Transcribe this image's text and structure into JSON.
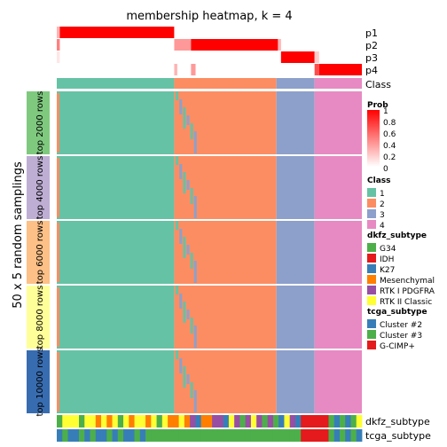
{
  "chart_data": {
    "type": "heatmap",
    "title": "membership heatmap, k = 4",
    "ylabel": "50 x 5 random samplings",
    "membership_rows": [
      {
        "label": "p1",
        "segments": [
          {
            "from": 0.0,
            "to": 0.01,
            "prob": 0.3
          },
          {
            "from": 0.01,
            "to": 0.385,
            "prob": 1.0
          },
          {
            "from": 0.385,
            "to": 1.0,
            "prob": 0.0
          }
        ]
      },
      {
        "label": "p2",
        "segments": [
          {
            "from": 0.0,
            "to": 0.01,
            "prob": 0.5
          },
          {
            "from": 0.385,
            "to": 0.44,
            "prob": 0.4
          },
          {
            "from": 0.44,
            "to": 0.725,
            "prob": 1.0
          },
          {
            "from": 0.725,
            "to": 0.735,
            "prob": 0.3
          }
        ]
      },
      {
        "label": "p3",
        "segments": [
          {
            "from": 0.0,
            "to": 0.01,
            "prob": 0.1
          },
          {
            "from": 0.735,
            "to": 0.845,
            "prob": 1.0
          },
          {
            "from": 0.845,
            "to": 0.86,
            "prob": 0.2
          }
        ]
      },
      {
        "label": "p4",
        "segments": [
          {
            "from": 0.385,
            "to": 0.395,
            "prob": 0.3
          },
          {
            "from": 0.44,
            "to": 0.455,
            "prob": 0.4
          },
          {
            "from": 0.845,
            "to": 0.86,
            "prob": 0.7
          },
          {
            "from": 0.86,
            "to": 1.0,
            "prob": 1.0
          }
        ]
      }
    ],
    "class_row_label": "Class",
    "class_segments": [
      {
        "from": 0.0,
        "to": 0.385,
        "class": 1
      },
      {
        "from": 0.385,
        "to": 0.72,
        "class": 2
      },
      {
        "from": 0.72,
        "to": 0.845,
        "class": 3
      },
      {
        "from": 0.845,
        "to": 1.0,
        "class": 4
      }
    ],
    "row_groups": [
      {
        "label": "top 2000 rows",
        "color": "#7fc97f"
      },
      {
        "label": "top 4000 rows",
        "color": "#beaed4"
      },
      {
        "label": "top 6000 rows",
        "color": "#fdc086"
      },
      {
        "label": "top 8000 rows",
        "color": "#ffff99"
      },
      {
        "label": "top 10000 rows",
        "color": "#386cb0"
      }
    ],
    "bottom_annotations": [
      {
        "label": "dkfz_subtype",
        "sequence": [
          "G34",
          "RTK II Classic",
          "RTK II Classic",
          "RTK II Classic",
          "G34",
          "RTK II Classic",
          "RTK II Classic",
          "Mesenchymal",
          "RTK II Classic",
          "Mesenchymal",
          "RTK II Classic",
          "G34",
          "RTK II Classic",
          "Mesenchymal",
          "RTK II Classic",
          "RTK II Classic",
          "Mesenchymal",
          "RTK II Classic",
          "G34",
          "RTK II Classic",
          "Mesenchymal",
          "Mesenchymal",
          "RTK II Classic",
          "Mesenchymal",
          "RTK I PDGFRA",
          "K27",
          "Mesenchymal",
          "Mesenchymal",
          "RTK I PDGFRA",
          "RTK I PDGFRA",
          "K27",
          "RTK II Classic",
          "RTK I PDGFRA",
          "G34",
          "RTK I PDGFRA",
          "RTK II Classic",
          "RTK I PDGFRA",
          "G34",
          "RTK I PDGFRA",
          "G34",
          "K27",
          "RTK II Classic",
          "RTK I PDGFRA",
          "K27",
          "IDH",
          "IDH",
          "IDH",
          "IDH",
          "IDH",
          "G34",
          "K27",
          "G34",
          "K27",
          "G34",
          "RTK II Classic"
        ]
      },
      {
        "label": "tcga_subtype",
        "sequence": [
          "Cluster #2",
          "Cluster #3",
          "Cluster #2",
          "Cluster #2",
          "Cluster #3",
          "Cluster #2",
          "Cluster #3",
          "Cluster #2",
          "Cluster #2",
          "Cluster #3",
          "Cluster #2",
          "Cluster #3",
          "Cluster #2",
          "Cluster #2",
          "Cluster #3",
          "Cluster #2",
          "Cluster #3",
          "Cluster #3",
          "Cluster #3",
          "Cluster #3",
          "Cluster #3",
          "Cluster #3",
          "Cluster #3",
          "Cluster #3",
          "Cluster #3",
          "Cluster #3",
          "Cluster #3",
          "Cluster #3",
          "Cluster #3",
          "Cluster #3",
          "Cluster #3",
          "Cluster #3",
          "Cluster #3",
          "Cluster #3",
          "Cluster #3",
          "Cluster #3",
          "Cluster #3",
          "Cluster #3",
          "Cluster #3",
          "Cluster #3",
          "Cluster #3",
          "Cluster #3",
          "Cluster #3",
          "Cluster #3",
          "G-CIMP+",
          "G-CIMP+",
          "G-CIMP+",
          "G-CIMP+",
          "G-CIMP+",
          "Cluster #3",
          "Cluster #2",
          "Cluster #3",
          "Cluster #2",
          "Cluster #3",
          "Cluster #2"
        ]
      }
    ],
    "legend": {
      "prob": {
        "title": "Prob",
        "ticks": [
          "1",
          "0.8",
          "0.6",
          "0.4",
          "0.2",
          "0"
        ]
      },
      "class": {
        "title": "Class",
        "entries": [
          {
            "label": "1",
            "color": "#66c2a5"
          },
          {
            "label": "2",
            "color": "#fc8d62"
          },
          {
            "label": "3",
            "color": "#8da0cb"
          },
          {
            "label": "4",
            "color": "#e78ac3"
          }
        ]
      },
      "dkfz_subtype": {
        "title": "dkfz_subtype",
        "entries": [
          {
            "label": "G34",
            "color": "#4daf4a"
          },
          {
            "label": "IDH",
            "color": "#e41a1c"
          },
          {
            "label": "K27",
            "color": "#377eb8"
          },
          {
            "label": "Mesenchymal",
            "color": "#ff7f00"
          },
          {
            "label": "RTK I PDGFRA",
            "color": "#984ea3"
          },
          {
            "label": "RTK II Classic",
            "color": "#ffff33"
          }
        ]
      },
      "tcga_subtype": {
        "title": "tcga_subtype",
        "entries": [
          {
            "label": "Cluster #2",
            "color": "#377eb8"
          },
          {
            "label": "Cluster #3",
            "color": "#4daf4a"
          },
          {
            "label": "G-CIMP+",
            "color": "#e41a1c"
          }
        ]
      }
    },
    "colors": {
      "prob_high": "#ff0000",
      "prob_low": "#ffffff",
      "separator": "#ffffff"
    }
  }
}
